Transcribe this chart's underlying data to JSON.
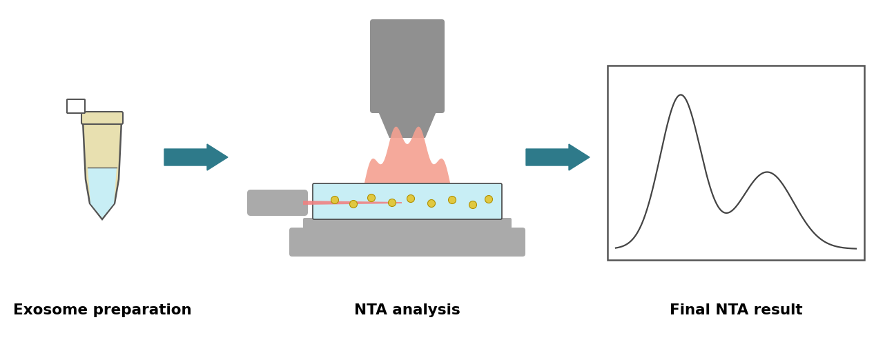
{
  "bg_color": "#ffffff",
  "label1": "Exosome preparation",
  "label2": "NTA analysis",
  "label3": "Final NTA result",
  "label_fontsize": 15.5,
  "label_fontweight": "bold",
  "arrow_color": "#2e7a8a",
  "tube_outline": "#555555",
  "tube_cap_color": "#e8e0b0",
  "tube_liquid_color": "#c8eef5",
  "tube_body_color": "#e8e0b0",
  "microscope_color": "#909090",
  "laser_color": "#f08080",
  "cell_color": "#c8eef5",
  "particle_color": "#e0c840",
  "flame_color": "#f4a090",
  "nta_curve_color": "#444444",
  "stage_color": "#aaaaaa",
  "laser_body_color": "#aaaaaa"
}
